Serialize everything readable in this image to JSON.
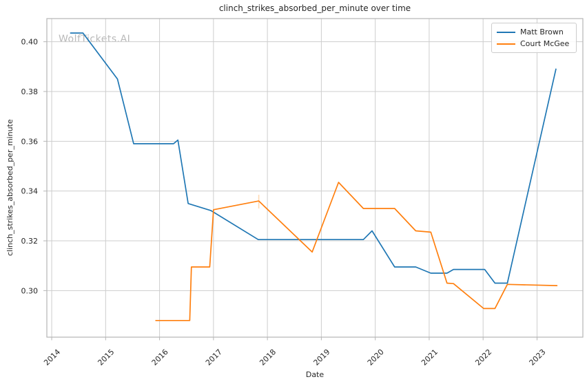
{
  "chart_data": {
    "type": "line",
    "title": "clinch_strikes_absorbed_per_minute over time",
    "xlabel": "Date",
    "ylabel": "clinch_strikes_absorbed_per_minute",
    "watermark": "WolfTickets.AI",
    "grid": true,
    "xlim": [
      2013.91,
      2023.85
    ],
    "ylim": [
      0.2813,
      0.4093
    ],
    "x_ticks": [
      2014,
      2015,
      2016,
      2017,
      2018,
      2019,
      2020,
      2021,
      2022,
      2023
    ],
    "x_tick_labels": [
      "2014",
      "2015",
      "2016",
      "2017",
      "2018",
      "2019",
      "2020",
      "2021",
      "2022",
      "2023"
    ],
    "y_ticks": [
      0.3,
      0.32,
      0.34,
      0.36,
      0.38,
      0.4
    ],
    "y_tick_labels": [
      "0.30",
      "0.32",
      "0.34",
      "0.36",
      "0.38",
      "0.40"
    ],
    "grid_color": "#cdcdcd",
    "axis_color": "#b5b5b5",
    "text_color": "#262626",
    "legend": {
      "position": "upper right",
      "entries": [
        {
          "label": "Matt Brown",
          "color": "#1f77b4"
        },
        {
          "label": "Court McGee",
          "color": "#ff7f0e"
        }
      ]
    },
    "series": [
      {
        "name": "Matt Brown",
        "color": "#1f77b4",
        "points": [
          [
            2014.35,
            0.4035
          ],
          [
            2014.58,
            0.4035
          ],
          [
            2015.22,
            0.385
          ],
          [
            2015.52,
            0.359
          ],
          [
            2016.26,
            0.359
          ],
          [
            2016.34,
            0.3605
          ],
          [
            2016.53,
            0.335
          ],
          [
            2016.95,
            0.3322
          ],
          [
            2017.83,
            0.3205
          ],
          [
            2019.78,
            0.3205
          ],
          [
            2019.94,
            0.324
          ],
          [
            2020.36,
            0.3095
          ],
          [
            2020.75,
            0.3095
          ],
          [
            2021.03,
            0.307
          ],
          [
            2021.33,
            0.307
          ],
          [
            2021.45,
            0.3085
          ],
          [
            2022.03,
            0.3085
          ],
          [
            2022.22,
            0.303
          ],
          [
            2022.45,
            0.303
          ],
          [
            2023.35,
            0.389
          ]
        ]
      },
      {
        "name": "Court McGee",
        "color": "#ff7f0e",
        "points": [
          [
            2015.93,
            0.288
          ],
          [
            2016.56,
            0.288
          ],
          [
            2016.59,
            0.3095
          ],
          [
            2016.93,
            0.3095
          ],
          [
            2017.0,
            0.3325
          ],
          [
            2017.84,
            0.336
          ],
          [
            2018.83,
            0.3155
          ],
          [
            2019.32,
            0.3435
          ],
          [
            2019.78,
            0.333
          ],
          [
            2020.36,
            0.333
          ],
          [
            2020.75,
            0.324
          ],
          [
            2021.03,
            0.3235
          ],
          [
            2021.33,
            0.303
          ],
          [
            2021.45,
            0.3028
          ],
          [
            2022.01,
            0.2928
          ],
          [
            2022.22,
            0.2928
          ],
          [
            2022.45,
            0.3025
          ],
          [
            2023.37,
            0.302
          ]
        ]
      }
    ],
    "error_bar": {
      "series": "Court McGee",
      "x": 2017.84,
      "y_low": 0.333,
      "y_high": 0.3385,
      "color": "#ffd9b3"
    }
  }
}
